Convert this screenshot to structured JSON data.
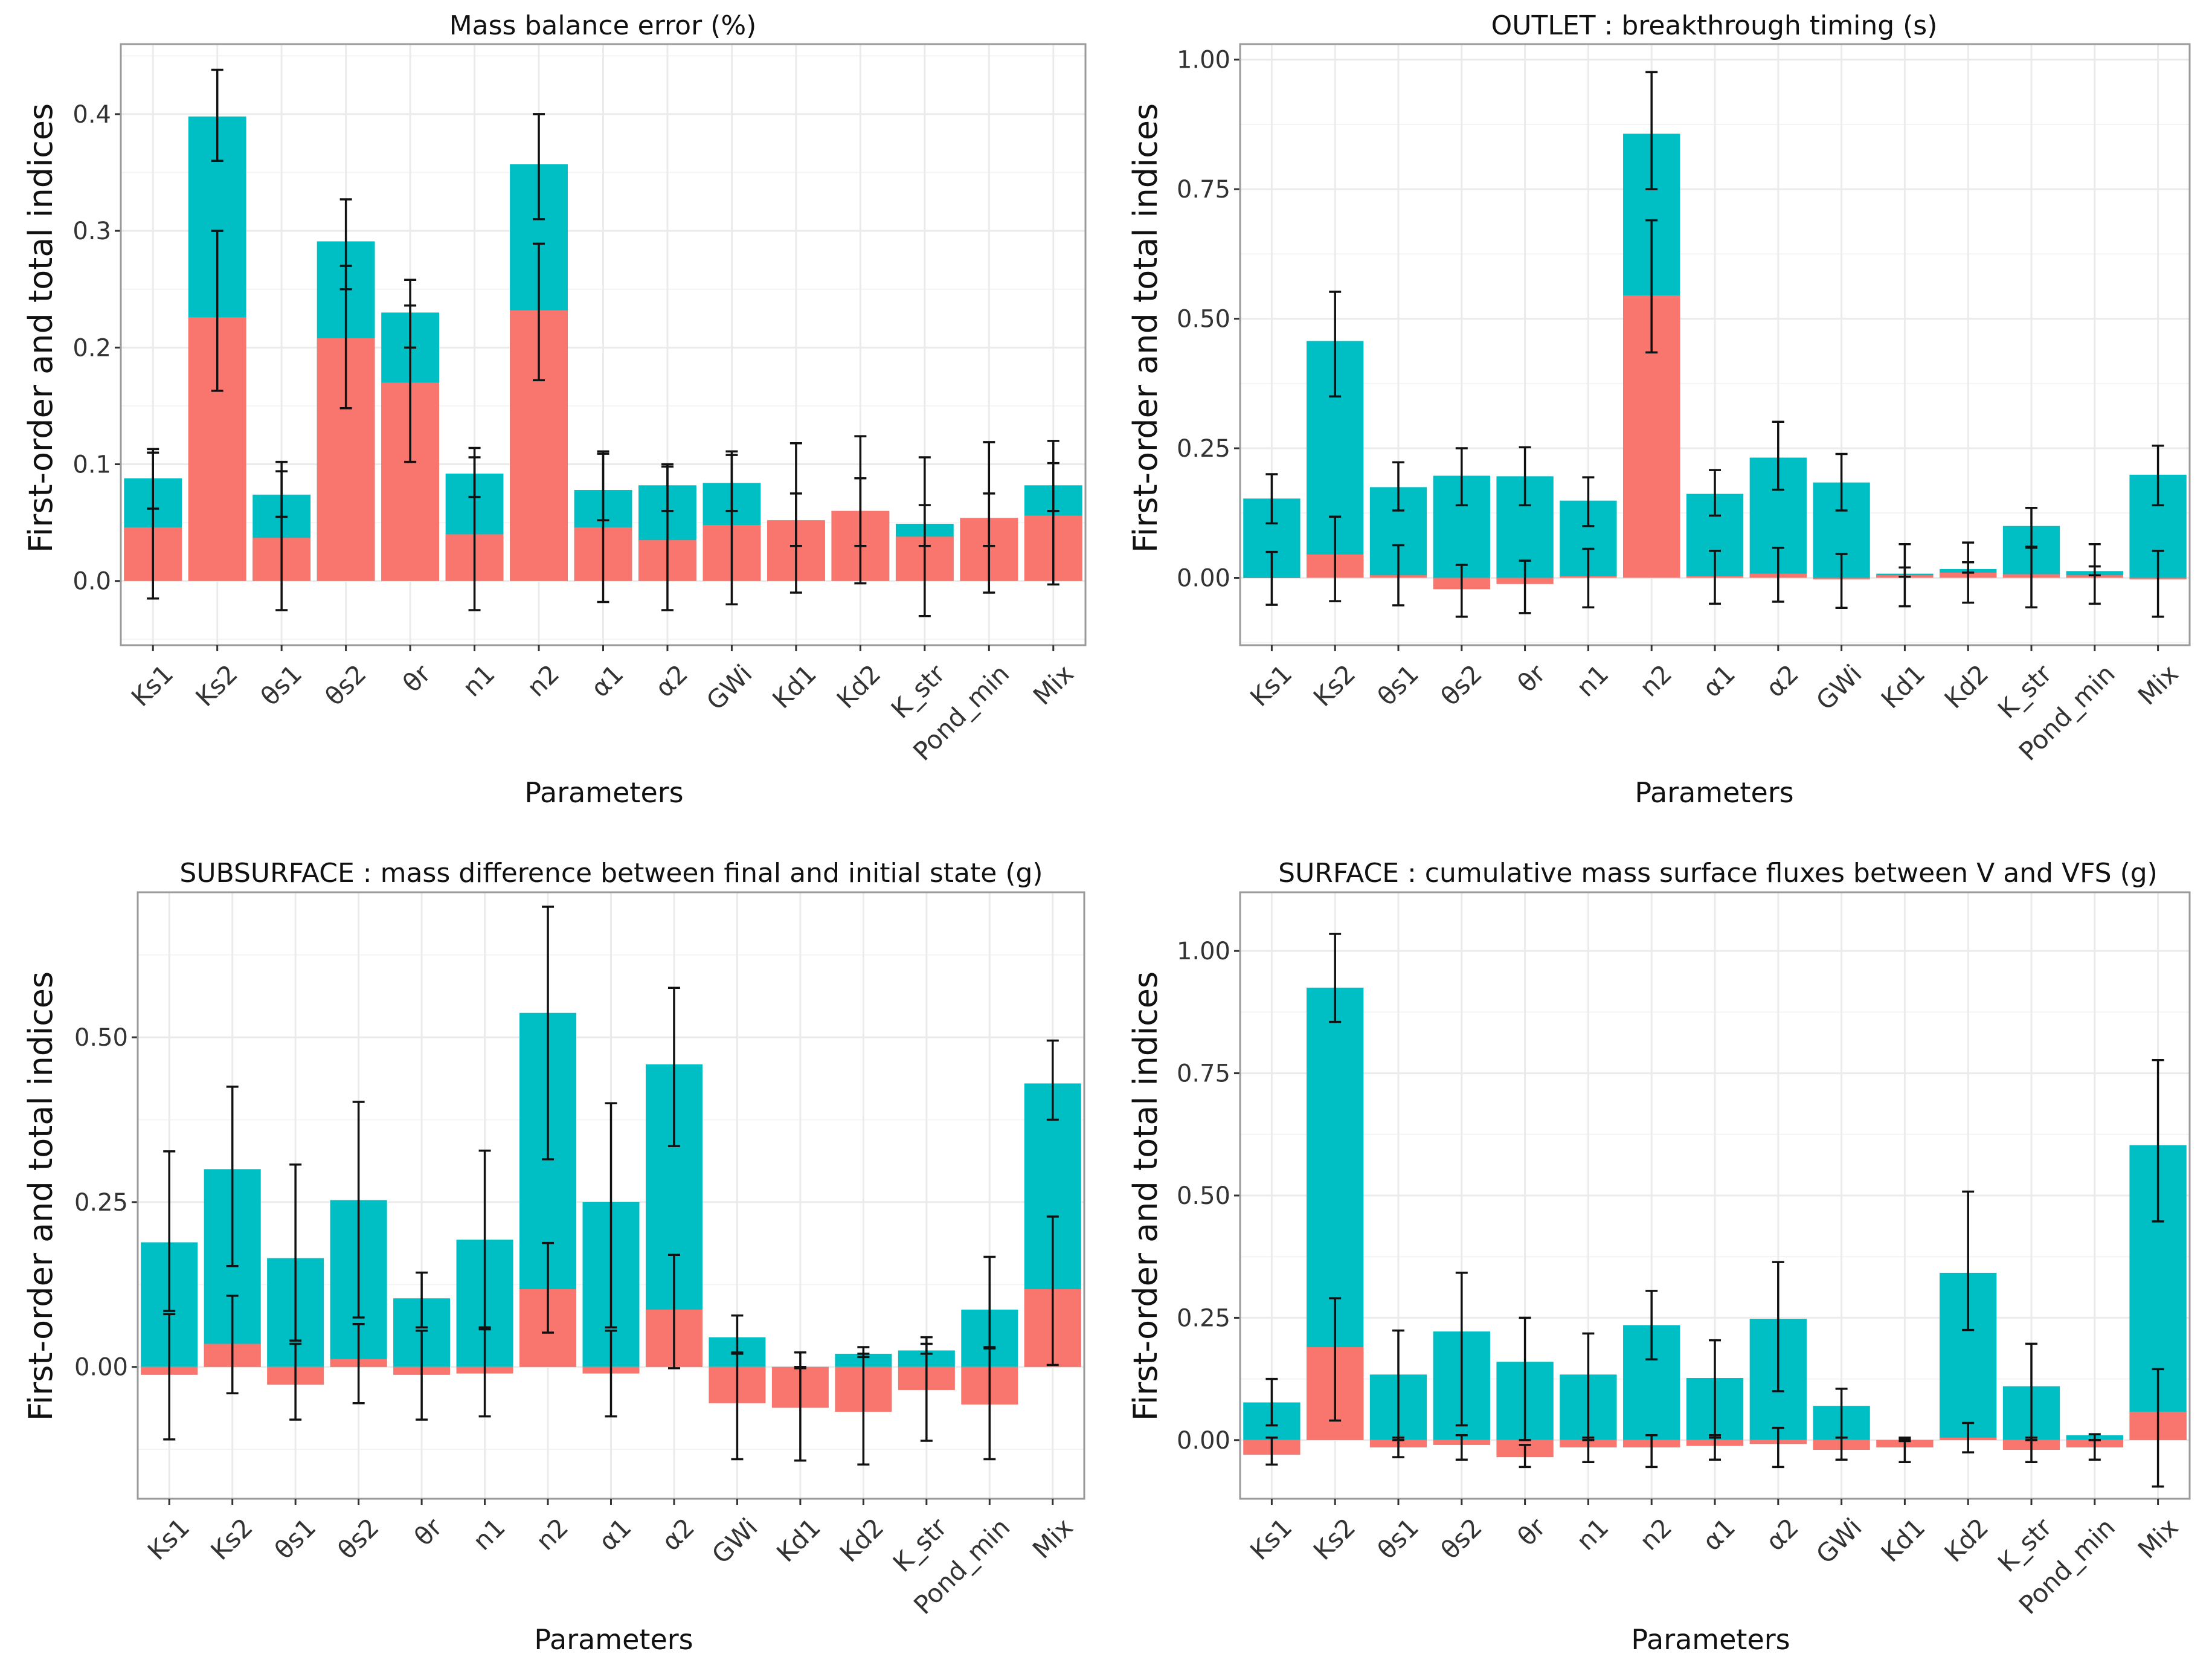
{
  "colors": {
    "total": "#00BFC4",
    "first_order": "#F8766D",
    "error_bar": "#111111",
    "panel_border": "#9a9a9a",
    "grid": "#ebebeb"
  },
  "chart_data": [
    {
      "type": "bar",
      "title": "Mass balance error (%)",
      "xlabel": "Parameters",
      "ylabel": "First-order and total indices",
      "ylim": [
        -0.055,
        0.46
      ],
      "yticks": [
        0.0,
        0.1,
        0.2,
        0.3,
        0.4
      ],
      "ytick_labels": [
        "0.0",
        "0.1",
        "0.2",
        "0.3",
        "0.4"
      ],
      "grid": true,
      "categories": [
        "Ks1",
        "Ks2",
        "θs1",
        "θs2",
        "θr",
        "n1",
        "n2",
        "α1",
        "α2",
        "GWi",
        "Kd1",
        "Kd2",
        "K_str",
        "Pond_min",
        "Mix"
      ],
      "series": [
        {
          "name": "Total",
          "values": [
            0.088,
            0.398,
            0.074,
            0.291,
            0.23,
            0.092,
            0.357,
            0.078,
            0.082,
            0.084,
            0.052,
            0.06,
            0.049,
            0.054,
            0.082
          ],
          "err_low": [
            0.062,
            0.36,
            0.055,
            0.25,
            0.2,
            0.072,
            0.31,
            0.052,
            0.06,
            0.06,
            0.03,
            0.03,
            0.03,
            0.03,
            0.06
          ],
          "err_high": [
            0.113,
            0.438,
            0.102,
            0.327,
            0.258,
            0.114,
            0.4,
            0.111,
            0.1,
            0.111,
            0.075,
            0.088,
            0.065,
            0.075,
            0.12
          ]
        },
        {
          "name": "First-order",
          "values": [
            0.046,
            0.226,
            0.037,
            0.208,
            0.17,
            0.04,
            0.232,
            0.046,
            0.035,
            0.048,
            0.052,
            0.06,
            0.038,
            0.054,
            0.056
          ],
          "err_low": [
            -0.015,
            0.163,
            -0.025,
            0.148,
            0.102,
            -0.025,
            0.172,
            -0.018,
            -0.025,
            -0.02,
            -0.01,
            -0.002,
            -0.03,
            -0.01,
            -0.003
          ],
          "err_high": [
            0.11,
            0.3,
            0.094,
            0.27,
            0.236,
            0.106,
            0.289,
            0.109,
            0.098,
            0.108,
            0.118,
            0.124,
            0.106,
            0.119,
            0.101
          ]
        }
      ]
    },
    {
      "type": "bar",
      "title": "OUTLET : breakthrough timing (s)",
      "xlabel": "Parameters",
      "ylabel": "First-order and total indices",
      "ylim": [
        -0.13,
        1.03
      ],
      "yticks": [
        0.0,
        0.25,
        0.5,
        0.75,
        1.0
      ],
      "ytick_labels": [
        "0.00",
        "0.25",
        "0.50",
        "0.75",
        "1.00"
      ],
      "grid": true,
      "categories": [
        "Ks1",
        "Ks2",
        "θs1",
        "θs2",
        "θr",
        "n1",
        "n2",
        "α1",
        "α2",
        "GWi",
        "Kd1",
        "Kd2",
        "K_str",
        "Pond_min",
        "Mix"
      ],
      "series": [
        {
          "name": "Total",
          "values": [
            0.153,
            0.457,
            0.175,
            0.197,
            0.196,
            0.149,
            0.857,
            0.162,
            0.232,
            0.184,
            0.008,
            0.017,
            0.1,
            0.013,
            0.199
          ],
          "err_low": [
            0.105,
            0.35,
            0.13,
            0.14,
            0.14,
            0.1,
            0.75,
            0.12,
            0.17,
            0.13,
            0.002,
            0.01,
            0.06,
            0.005,
            0.14
          ],
          "err_high": [
            0.2,
            0.552,
            0.223,
            0.25,
            0.252,
            0.194,
            0.976,
            0.208,
            0.301,
            0.239,
            0.02,
            0.03,
            0.135,
            0.022,
            0.255
          ]
        },
        {
          "name": "First-order",
          "values": [
            0.0,
            0.045,
            0.005,
            -0.022,
            -0.012,
            0.003,
            0.545,
            0.003,
            0.008,
            -0.003,
            0.005,
            0.01,
            0.007,
            0.005,
            -0.003
          ],
          "err_low": [
            -0.052,
            -0.045,
            -0.053,
            -0.075,
            -0.068,
            -0.057,
            0.435,
            -0.05,
            -0.046,
            -0.058,
            -0.055,
            -0.048,
            -0.057,
            -0.05,
            -0.075
          ],
          "err_high": [
            0.05,
            0.118,
            0.063,
            0.025,
            0.033,
            0.056,
            0.69,
            0.052,
            0.058,
            0.046,
            0.065,
            0.068,
            0.058,
            0.065,
            0.052
          ]
        }
      ]
    },
    {
      "type": "bar",
      "title": "SUBSURFACE : mass difference between final and initial state (g)",
      "xlabel": "Parameters",
      "ylabel": "First-order and total indices",
      "ylim": [
        -0.2,
        0.72
      ],
      "yticks": [
        0.0,
        0.25,
        0.5
      ],
      "ytick_labels": [
        "0.00",
        "0.25",
        "0.50"
      ],
      "grid": true,
      "categories": [
        "Ks1",
        "Ks2",
        "θs1",
        "θs2",
        "θr",
        "n1",
        "n2",
        "α1",
        "α2",
        "GWi",
        "Kd1",
        "Kd2",
        "K_str",
        "Pond_min",
        "Mix"
      ],
      "series": [
        {
          "name": "Total",
          "values": [
            0.189,
            0.3,
            0.165,
            0.253,
            0.104,
            0.193,
            0.537,
            0.25,
            0.459,
            0.045,
            0.0,
            0.02,
            0.025,
            0.087,
            0.43
          ],
          "err_low": [
            0.085,
            0.153,
            0.04,
            0.075,
            0.06,
            0.06,
            0.315,
            0.06,
            0.335,
            0.02,
            -0.002,
            0.015,
            0.02,
            0.03,
            0.375
          ],
          "err_high": [
            0.327,
            0.425,
            0.307,
            0.402,
            0.143,
            0.328,
            0.698,
            0.4,
            0.575,
            0.078,
            0.022,
            0.03,
            0.045,
            0.167,
            0.495
          ]
        },
        {
          "name": "First-order",
          "values": [
            -0.012,
            0.035,
            -0.027,
            0.012,
            -0.012,
            -0.01,
            0.118,
            -0.01,
            0.087,
            -0.055,
            -0.062,
            -0.068,
            -0.035,
            -0.057,
            0.118
          ],
          "err_low": [
            -0.11,
            -0.04,
            -0.08,
            -0.055,
            -0.08,
            -0.075,
            0.052,
            -0.075,
            -0.002,
            -0.14,
            -0.142,
            -0.148,
            -0.112,
            -0.14,
            0.003
          ],
          "err_high": [
            0.08,
            0.108,
            0.035,
            0.065,
            0.055,
            0.057,
            0.188,
            0.055,
            0.17,
            0.022,
            0.0,
            0.02,
            0.035,
            0.028,
            0.228
          ]
        }
      ]
    },
    {
      "type": "bar",
      "title": "SURFACE : cumulative mass surface fluxes between V and VFS  (g)",
      "xlabel": "Parameters",
      "ylabel": "First-order and total indices",
      "ylim": [
        -0.12,
        1.12
      ],
      "yticks": [
        0.0,
        0.25,
        0.5,
        0.75,
        1.0
      ],
      "ytick_labels": [
        "0.00",
        "0.25",
        "0.50",
        "0.75",
        "1.00"
      ],
      "grid": true,
      "categories": [
        "Ks1",
        "Ks2",
        "θs1",
        "θs2",
        "θr",
        "n1",
        "n2",
        "α1",
        "α2",
        "GWi",
        "Kd1",
        "Kd2",
        "K_str",
        "Pond_min",
        "Mix"
      ],
      "series": [
        {
          "name": "Total",
          "values": [
            0.077,
            0.925,
            0.134,
            0.222,
            0.16,
            0.134,
            0.235,
            0.127,
            0.248,
            0.07,
            0.0,
            0.342,
            0.11,
            0.01,
            0.603
          ],
          "err_low": [
            0.03,
            0.855,
            0.0,
            0.03,
            0.0,
            0.0,
            0.165,
            0.005,
            0.1,
            0.005,
            -0.002,
            0.225,
            0.0,
            0.0,
            0.447
          ],
          "err_high": [
            0.125,
            1.035,
            0.224,
            0.342,
            0.25,
            0.218,
            0.305,
            0.204,
            0.364,
            0.105,
            0.002,
            0.508,
            0.197,
            0.012,
            0.777
          ]
        },
        {
          "name": "First-order",
          "values": [
            -0.03,
            0.19,
            -0.015,
            -0.01,
            -0.035,
            -0.015,
            -0.015,
            -0.012,
            -0.008,
            -0.02,
            -0.015,
            0.005,
            -0.02,
            -0.015,
            0.058
          ],
          "err_low": [
            -0.05,
            0.04,
            -0.035,
            -0.04,
            -0.055,
            -0.045,
            -0.055,
            -0.04,
            -0.055,
            -0.04,
            -0.045,
            -0.025,
            -0.045,
            -0.04,
            -0.095
          ],
          "err_high": [
            0.005,
            0.29,
            0.005,
            0.01,
            -0.01,
            0.005,
            0.01,
            0.01,
            0.025,
            0.005,
            0.005,
            0.035,
            0.005,
            0.0,
            0.145
          ]
        }
      ]
    }
  ]
}
